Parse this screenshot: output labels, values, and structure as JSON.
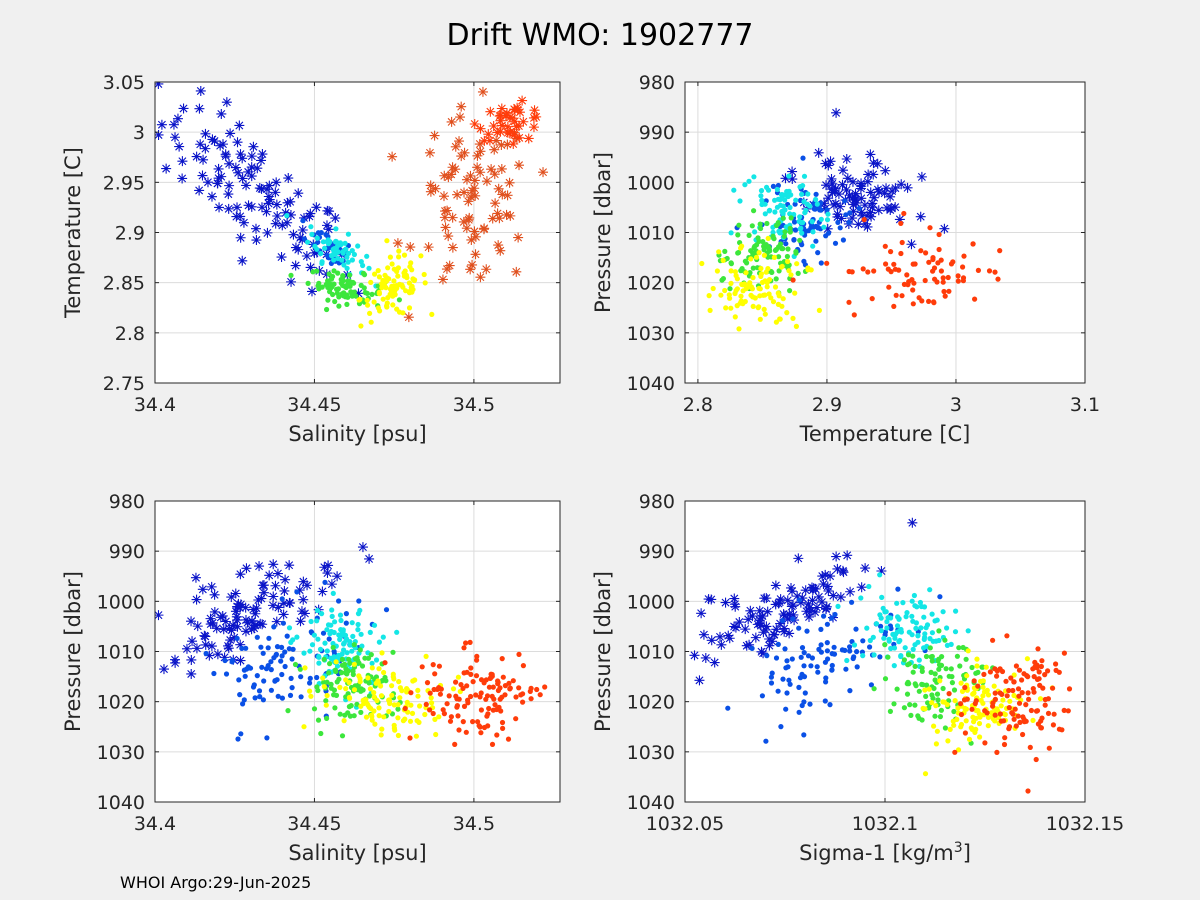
{
  "figure": {
    "title": "Drift WMO: 1902777",
    "footer": "WHOI Argo:29-Jun-2025"
  },
  "colors": {
    "background": "#f0f0f0",
    "axes_bg": "#ffffff",
    "grid": "#dcdcdc",
    "band_colors": [
      "#0a14c8",
      "#0a50e6",
      "#14e6e6",
      "#3ce63c",
      "#ffff00",
      "#ff3c0a"
    ]
  },
  "chart_data": [
    {
      "type": "scatter",
      "panel": "top-left",
      "xlabel": "Salinity [psu]",
      "ylabel": "Temperature [C]",
      "xlim": [
        34.4,
        34.527
      ],
      "ylim": [
        2.75,
        3.05
      ],
      "y_reversed": false,
      "xticks": [
        "34.4",
        "34.45",
        "34.5"
      ],
      "xtick_values": [
        34.4,
        34.45,
        34.5
      ],
      "yticks": [
        "2.75",
        "2.8",
        "2.85",
        "2.9",
        "2.95",
        "3",
        "3.05"
      ],
      "ytick_values": [
        2.75,
        2.8,
        2.85,
        2.9,
        2.95,
        3.0,
        3.05
      ],
      "grid": true,
      "series": [
        {
          "marker": "star",
          "color": "#0a14c8",
          "center": [
            34.432,
            2.935
          ],
          "spread": [
            0.02,
            0.038
          ],
          "n": 120,
          "trend": -2.5
        },
        {
          "marker": "dot",
          "color": "#0a50e6",
          "center": [
            34.455,
            2.885
          ],
          "spread": [
            0.005,
            0.012
          ],
          "n": 40,
          "trend": -2.0
        },
        {
          "marker": "dot",
          "color": "#14e6e6",
          "center": [
            34.457,
            2.883
          ],
          "spread": [
            0.006,
            0.012
          ],
          "n": 60,
          "trend": -1.5
        },
        {
          "marker": "dot",
          "color": "#3ce63c",
          "center": [
            34.46,
            2.845
          ],
          "spread": [
            0.008,
            0.01
          ],
          "n": 80,
          "trend": -0.6
        },
        {
          "marker": "dot",
          "color": "#ffff00",
          "center": [
            34.475,
            2.845
          ],
          "spread": [
            0.007,
            0.02
          ],
          "n": 90,
          "trend": 1.0
        },
        {
          "marker": "star",
          "color": "#e0501e",
          "center": [
            34.5,
            2.93
          ],
          "spread": [
            0.012,
            0.06
          ],
          "n": 90,
          "trend": 0
        },
        {
          "marker": "star",
          "color": "#ff3c0a",
          "center": [
            34.512,
            3.01
          ],
          "spread": [
            0.007,
            0.012
          ],
          "n": 40,
          "trend": 0
        }
      ]
    },
    {
      "type": "scatter",
      "panel": "top-right",
      "xlabel": "Temperature [C]",
      "ylabel": "Pressure [dbar]",
      "xlim": [
        2.79,
        3.1
      ],
      "ylim": [
        980,
        1040
      ],
      "y_reversed": true,
      "xticks": [
        "2.8",
        "2.9",
        "3",
        "3.1"
      ],
      "xtick_values": [
        2.8,
        2.9,
        3.0,
        3.1
      ],
      "yticks": [
        "980",
        "990",
        "1000",
        "1010",
        "1020",
        "1030",
        "1040"
      ],
      "ytick_values": [
        980,
        990,
        1000,
        1010,
        1020,
        1030,
        1040
      ],
      "grid": true,
      "series": [
        {
          "marker": "star",
          "color": "#0a14c8",
          "center": [
            2.92,
            1002
          ],
          "spread": [
            0.03,
            5
          ],
          "n": 90,
          "trend": 60
        },
        {
          "marker": "dot",
          "color": "#0a50e6",
          "center": [
            2.885,
            1008
          ],
          "spread": [
            0.025,
            6
          ],
          "n": 80,
          "trend": 0
        },
        {
          "marker": "dot",
          "color": "#14e6e6",
          "center": [
            2.865,
            1006
          ],
          "spread": [
            0.02,
            5
          ],
          "n": 90,
          "trend": 0
        },
        {
          "marker": "dot",
          "color": "#3ce63c",
          "center": [
            2.85,
            1014
          ],
          "spread": [
            0.02,
            5
          ],
          "n": 100,
          "trend": 0
        },
        {
          "marker": "dot",
          "color": "#ffff00",
          "center": [
            2.845,
            1021
          ],
          "spread": [
            0.025,
            5
          ],
          "n": 100,
          "trend": 0
        },
        {
          "marker": "dot",
          "color": "#ff3c0a",
          "center": [
            2.975,
            1018
          ],
          "spread": [
            0.045,
            5
          ],
          "n": 80,
          "trend": 0
        }
      ]
    },
    {
      "type": "scatter",
      "panel": "bottom-left",
      "xlabel": "Salinity [psu]",
      "ylabel": "Pressure [dbar]",
      "xlim": [
        34.4,
        34.527
      ],
      "ylim": [
        980,
        1040
      ],
      "y_reversed": true,
      "xticks": [
        "34.4",
        "34.45",
        "34.5"
      ],
      "xtick_values": [
        34.4,
        34.45,
        34.5
      ],
      "yticks": [
        "980",
        "990",
        "1000",
        "1010",
        "1020",
        "1030",
        "1040"
      ],
      "ytick_values": [
        980,
        990,
        1000,
        1010,
        1020,
        1030,
        1040
      ],
      "grid": true,
      "series": [
        {
          "marker": "star",
          "color": "#0a14c8",
          "center": [
            34.43,
            1002
          ],
          "spread": [
            0.018,
            5
          ],
          "n": 110,
          "trend": -250
        },
        {
          "marker": "dot",
          "color": "#0a50e6",
          "center": [
            34.44,
            1012
          ],
          "spread": [
            0.016,
            7
          ],
          "n": 100,
          "trend": -200
        },
        {
          "marker": "dot",
          "color": "#14e6e6",
          "center": [
            34.458,
            1008
          ],
          "spread": [
            0.008,
            6
          ],
          "n": 100,
          "trend": 0
        },
        {
          "marker": "dot",
          "color": "#3ce63c",
          "center": [
            34.462,
            1017
          ],
          "spread": [
            0.009,
            5
          ],
          "n": 100,
          "trend": 0
        },
        {
          "marker": "dot",
          "color": "#ffff00",
          "center": [
            34.47,
            1019
          ],
          "spread": [
            0.012,
            5
          ],
          "n": 110,
          "trend": 0
        },
        {
          "marker": "dot",
          "color": "#ff3c0a",
          "center": [
            34.502,
            1019
          ],
          "spread": [
            0.012,
            6
          ],
          "n": 120,
          "trend": 0
        }
      ]
    },
    {
      "type": "scatter",
      "panel": "bottom-right",
      "xlabel": "Sigma-1 [kg/m",
      "xlabel_superscript": "3",
      "xlabel_suffix": "]",
      "ylabel": "Pressure [dbar]",
      "xlim": [
        1032.05,
        1032.15
      ],
      "ylim": [
        980,
        1040
      ],
      "y_reversed": true,
      "xticks": [
        "1032.05",
        "1032.1",
        "1032.15"
      ],
      "xtick_values": [
        1032.05,
        1032.1,
        1032.15
      ],
      "yticks": [
        "980",
        "990",
        "1000",
        "1010",
        "1020",
        "1030",
        "1040"
      ],
      "ytick_values": [
        980,
        990,
        1000,
        1010,
        1020,
        1030,
        1040
      ],
      "grid": true,
      "series": [
        {
          "marker": "star",
          "color": "#0a14c8",
          "center": [
            1032.075,
            1002
          ],
          "spread": [
            0.015,
            5
          ],
          "n": 110,
          "trend": -300
        },
        {
          "marker": "dot",
          "color": "#0a50e6",
          "center": [
            1032.085,
            1012
          ],
          "spread": [
            0.014,
            7
          ],
          "n": 100,
          "trend": -300
        },
        {
          "marker": "dot",
          "color": "#14e6e6",
          "center": [
            1032.105,
            1006
          ],
          "spread": [
            0.008,
            5
          ],
          "n": 100,
          "trend": 0
        },
        {
          "marker": "dot",
          "color": "#3ce63c",
          "center": [
            1032.112,
            1016
          ],
          "spread": [
            0.008,
            6
          ],
          "n": 100,
          "trend": 0
        },
        {
          "marker": "dot",
          "color": "#ffff00",
          "center": [
            1032.122,
            1021
          ],
          "spread": [
            0.008,
            5
          ],
          "n": 110,
          "trend": 0
        },
        {
          "marker": "dot",
          "color": "#ff3c0a",
          "center": [
            1032.133,
            1019
          ],
          "spread": [
            0.01,
            7
          ],
          "n": 120,
          "trend": 0
        }
      ]
    }
  ]
}
